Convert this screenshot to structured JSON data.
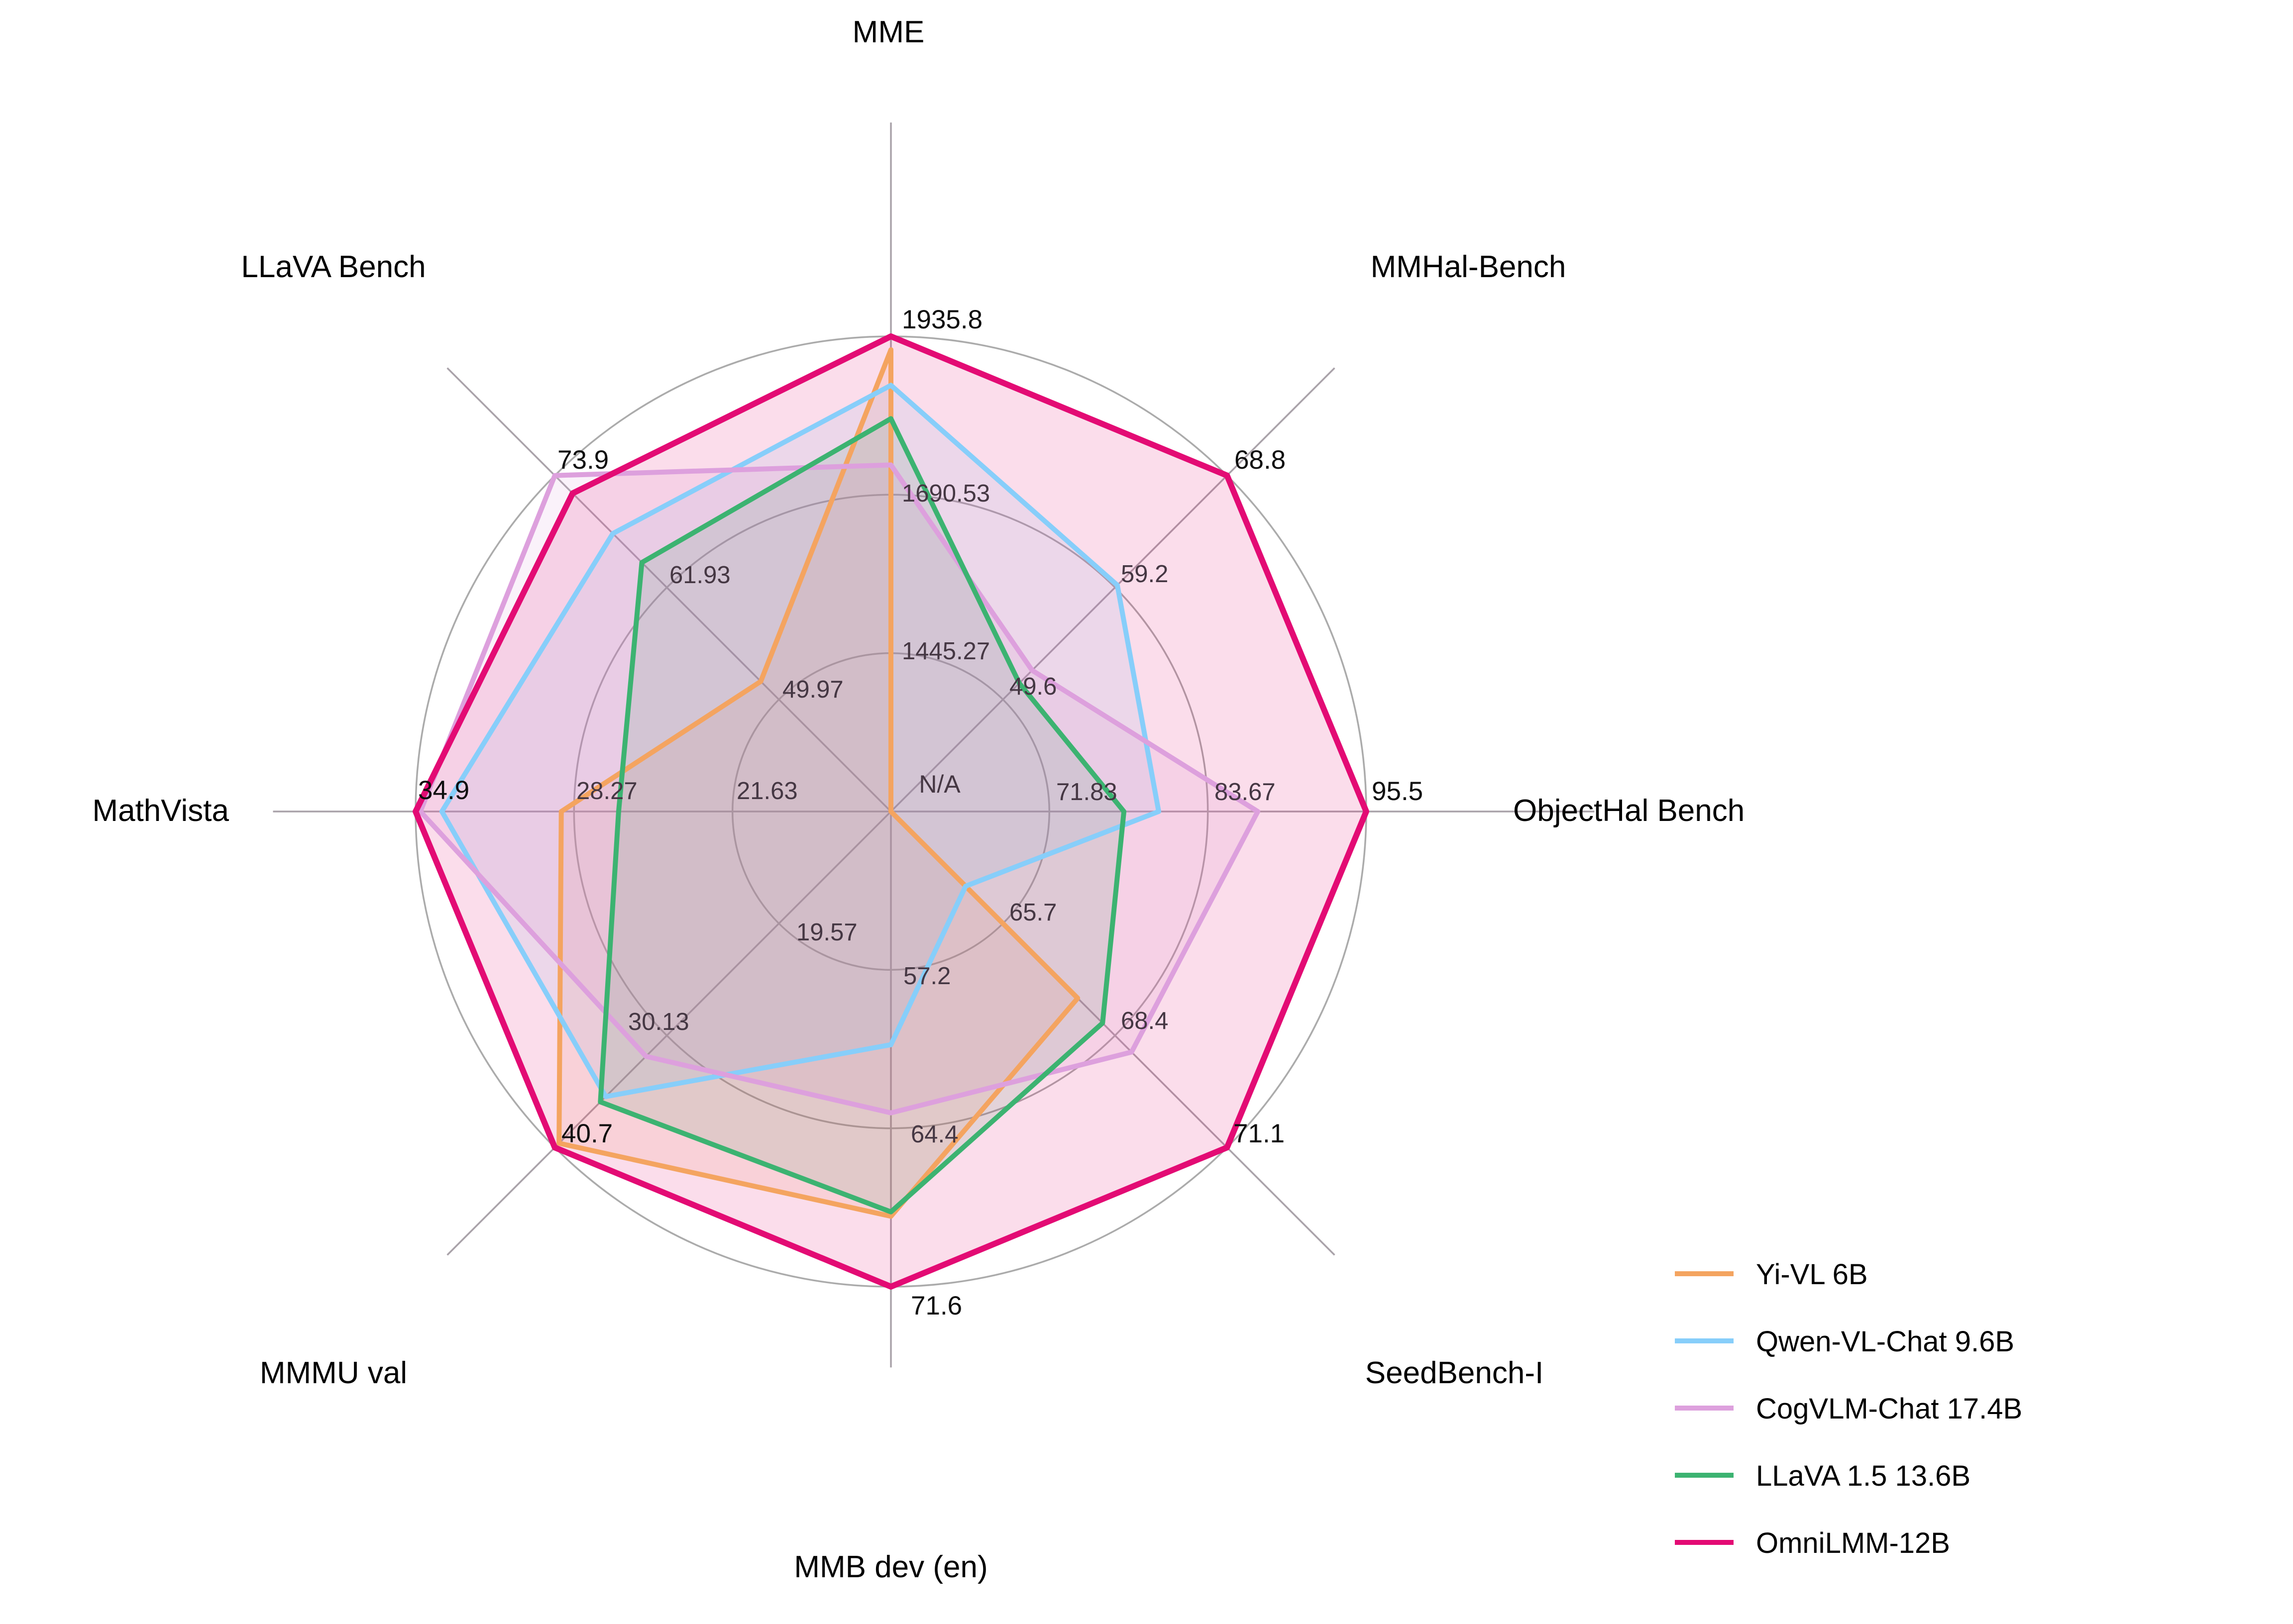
{
  "chart_data": {
    "type": "radar",
    "title": "",
    "grid": "on",
    "rings_at_fraction": [
      0.3333,
      0.6667,
      1.0
    ],
    "center_label": "N/A",
    "legend_position": "lower right",
    "axes": [
      {
        "label": "MME",
        "min": 1200.0,
        "max": 1935.8,
        "tick_labels": [
          "1445.27",
          "1690.53",
          "1935.8"
        ]
      },
      {
        "label": "MMHal-Bench",
        "min": 40.0,
        "max": 68.8,
        "tick_labels": [
          "49.6",
          "59.2",
          "68.8"
        ]
      },
      {
        "label": "ObjectHal Bench",
        "min": 60.0,
        "max": 95.5,
        "tick_labels": [
          "71.83",
          "83.67",
          "95.5"
        ]
      },
      {
        "label": "SeedBench-I",
        "min": 63.0,
        "max": 71.1,
        "tick_labels": [
          "65.7",
          "68.4",
          "71.1"
        ]
      },
      {
        "label": "MMB dev (en)",
        "min": 50.0,
        "max": 71.6,
        "tick_labels": [
          "57.2",
          "64.4",
          "71.6"
        ]
      },
      {
        "label": "MMMU val",
        "min": 9.0,
        "max": 40.7,
        "tick_labels": [
          "19.57",
          "30.13",
          "40.7"
        ]
      },
      {
        "label": "MathVista",
        "min": 15.0,
        "max": 34.9,
        "tick_labels": [
          "21.63",
          "28.27",
          "34.9"
        ]
      },
      {
        "label": "LLaVA Bench",
        "min": 38.0,
        "max": 73.9,
        "tick_labels": [
          "49.97",
          "61.93",
          "73.9"
        ]
      }
    ],
    "series": [
      {
        "name": "Yi-VL 6B",
        "color": "#F4A460",
        "values": [
          1915.1,
          null,
          null,
          67.5,
          68.4,
          40.3,
          28.8,
          51.9
        ]
      },
      {
        "name": "Qwen-VL-Chat 9.6B",
        "color": "#87CEFA",
        "values": [
          1860.0,
          59.4,
          80.0,
          64.8,
          60.6,
          35.9,
          33.8,
          67.7
        ]
      },
      {
        "name": "CogVLM-Chat 17.4B",
        "color": "#DDA0DD",
        "values": [
          1736.6,
          52.1,
          87.4,
          68.8,
          63.7,
          32.1,
          34.7,
          73.9
        ]
      },
      {
        "name": "LLaVA 1.5 13.6B",
        "color": "#3CB371",
        "values": [
          1808.4,
          51.0,
          77.4,
          68.1,
          68.2,
          36.4,
          26.4,
          64.6
        ]
      },
      {
        "name": "OmniLMM-12B",
        "color": "#E30B74",
        "values": [
          1935.8,
          68.8,
          95.5,
          71.1,
          71.6,
          40.7,
          34.9,
          72.0
        ]
      }
    ],
    "style": {
      "grid_color": "#ABABAB",
      "spoke_color": "#A9A2A9",
      "inner_tick_color": "#453743",
      "outer_tick_color": "#0d0d0d",
      "axis_label_color": "#000000",
      "fill_opacity": 0.14
    }
  }
}
